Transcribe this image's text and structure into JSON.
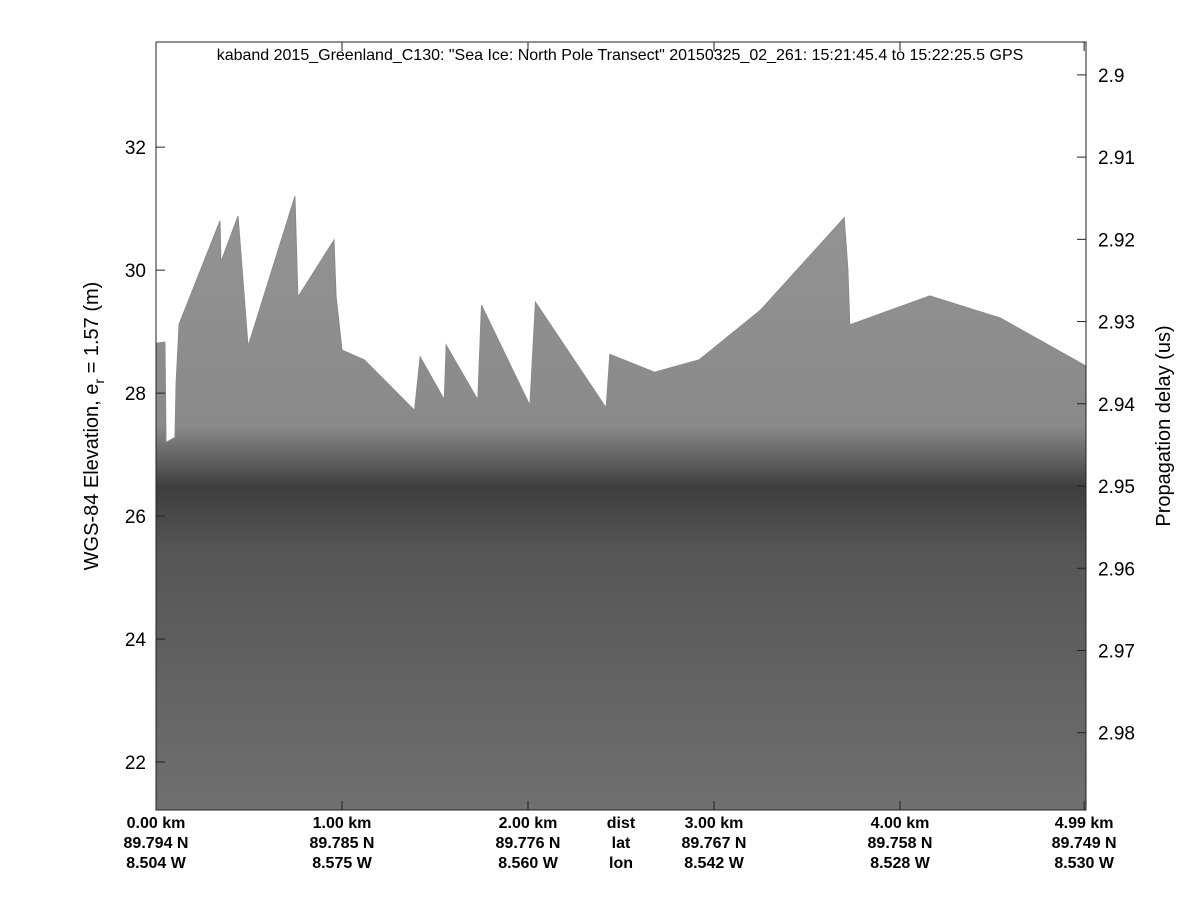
{
  "chart_data": {
    "type": "echogram",
    "title": "kaband 2015_Greenland_C130: \"Sea Ice: North Pole Transect\"  20150325_02_261: 15:21:45.4 to 15:22:25.5 GPS",
    "ylabel": "WGS-84 Elevation, e",
    "ylabel_sub": "r",
    "ylabel_end": " = 1.57 (m)",
    "y2label": "Propagation delay (us)",
    "row_labels": [
      "dist",
      "lat",
      "lon"
    ],
    "xlim": [
      0,
      5.0
    ],
    "xticks": [
      {
        "value": 0,
        "label": "0.00 km"
      },
      {
        "value": 1,
        "label": "1.00 km"
      },
      {
        "value": 2,
        "label": "2.00 km"
      },
      {
        "value": 3,
        "label": "3.00 km"
      },
      {
        "value": 4,
        "label": "4.00 km"
      },
      {
        "value": 4.99,
        "label": "4.99 km"
      }
    ],
    "lat_labels": [
      "89.794 N",
      "89.785 N",
      "89.776 N",
      "89.767 N",
      "89.758 N",
      "89.749 N"
    ],
    "lon_labels": [
      "8.504 W",
      "8.575 W",
      "8.560 W",
      "8.542 W",
      "8.528 W",
      "8.530 W"
    ],
    "ylim": [
      21.22,
      33.71
    ],
    "yticks": [
      22,
      24,
      26,
      28,
      30,
      32
    ],
    "y2lim": [
      2.9894,
      2.896
    ],
    "y2ticks": [
      2.9,
      2.91,
      2.92,
      2.93,
      2.94,
      2.95,
      2.96,
      2.97,
      2.98
    ],
    "x": [
      0,
      0.048,
      0.054,
      0.102,
      0.108,
      0.124,
      0.344,
      0.349,
      0.441,
      0.495,
      0.747,
      0.763,
      0.957,
      0.968,
      1.0,
      1.12,
      1.39,
      1.42,
      1.55,
      1.56,
      1.73,
      1.75,
      2.01,
      2.04,
      2.42,
      2.44,
      2.68,
      2.92,
      3.25,
      3.7,
      3.72,
      3.73,
      4.16,
      4.54,
      5.0
    ],
    "values": [
      28.81,
      28.83,
      27.2,
      27.28,
      28.16,
      29.12,
      30.8,
      30.13,
      30.88,
      28.76,
      31.2,
      29.56,
      30.49,
      29.58,
      28.7,
      28.54,
      27.72,
      28.59,
      27.89,
      28.78,
      27.89,
      29.43,
      27.8,
      29.48,
      27.76,
      28.63,
      28.34,
      28.54,
      29.35,
      30.85,
      30.0,
      29.11,
      29.58,
      29.22,
      28.44
    ],
    "color": "#8a8a8a"
  }
}
